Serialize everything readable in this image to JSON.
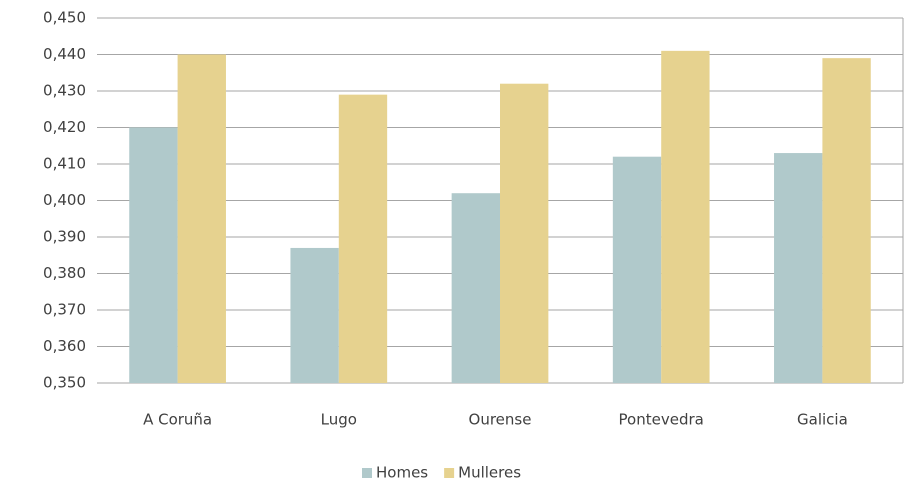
{
  "chart_data": {
    "type": "bar",
    "categories": [
      "A Coruña",
      "Lugo",
      "Ourense",
      "Pontevedra",
      "Galicia"
    ],
    "series": [
      {
        "name": "Homes",
        "color": "#b0c9cb",
        "values": [
          0.42,
          0.387,
          0.402,
          0.412,
          0.413
        ]
      },
      {
        "name": "Mulleres",
        "color": "#e6d28f",
        "values": [
          0.44,
          0.429,
          0.432,
          0.441,
          0.439
        ]
      }
    ],
    "ylim": [
      0.35,
      0.45
    ],
    "yticks": [
      {
        "value": 0.35,
        "label": "0,350"
      },
      {
        "value": 0.36,
        "label": "0,360"
      },
      {
        "value": 0.37,
        "label": "0,370"
      },
      {
        "value": 0.38,
        "label": "0,380"
      },
      {
        "value": 0.39,
        "label": "0,390"
      },
      {
        "value": 0.4,
        "label": "0,400"
      },
      {
        "value": 0.41,
        "label": "0,410"
      },
      {
        "value": 0.42,
        "label": "0,420"
      },
      {
        "value": 0.43,
        "label": "0,430"
      },
      {
        "value": 0.44,
        "label": "0,440"
      },
      {
        "value": 0.45,
        "label": "0,450"
      }
    ],
    "grid": true,
    "legend": "bottom"
  }
}
